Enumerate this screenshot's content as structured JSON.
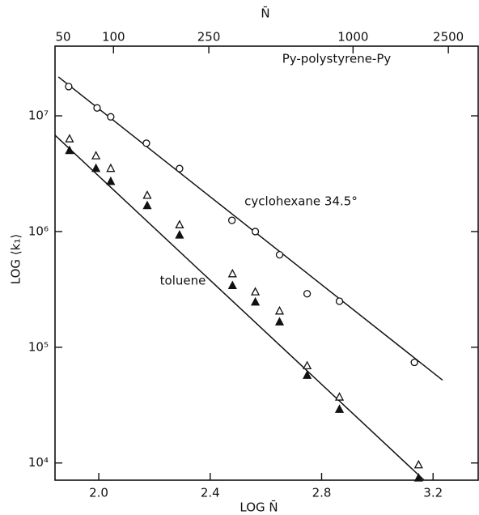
{
  "chart_data": {
    "type": "scatter",
    "x_label": "LOG N̄",
    "x2_label": "N̄",
    "y_label": "LOG ⟨k₁⟩",
    "annotations": [
      "Py-polystyrene-Py",
      "cyclohexane 34.5°",
      "toluene"
    ],
    "xlim": [
      1.843,
      3.362
    ],
    "xticks": [
      {
        "value": 2,
        "label": "2.0"
      },
      2.4,
      2.8,
      3.2
    ],
    "x2lim": [
      57,
      3330
    ],
    "x2_log_scale": true,
    "x2ticks": [
      50,
      100,
      250,
      1000,
      2500
    ],
    "ylim": [
      7100,
      40000000
    ],
    "y_log_scale": true,
    "yticks": [
      {
        "value": 10000,
        "label": "10⁴"
      },
      {
        "value": 100000,
        "label": "10⁵"
      },
      {
        "value": 1000000,
        "label": "10⁶"
      },
      {
        "value": 10000000,
        "label": "10⁷"
      }
    ],
    "color": "#111111",
    "series": [
      {
        "marker": "open-circle",
        "x": [
          1.892,
          1.994,
          2.043,
          2.171,
          2.29,
          2.478,
          2.562,
          2.649,
          2.748,
          2.864,
          3.133
        ],
        "values": [
          17900000,
          11700000,
          9800000,
          5800000,
          3500000,
          1250000,
          1000000,
          630000,
          290000,
          250000,
          74000
        ]
      },
      {
        "marker": "open-triangle",
        "x": [
          1.895,
          1.99,
          2.043,
          2.174,
          2.29,
          2.48,
          2.562,
          2.649,
          2.748,
          2.864,
          3.148
        ],
        "values": [
          6300000,
          4500000,
          3500000,
          2050000,
          1140000,
          430000,
          300000,
          205000,
          69000,
          37000,
          9600
        ]
      },
      {
        "marker": "filled-triangle",
        "x": [
          1.895,
          1.99,
          2.043,
          2.174,
          2.29,
          2.48,
          2.562,
          2.649,
          2.748,
          2.864,
          3.148
        ],
        "values": [
          5000000,
          3500000,
          2700000,
          1670000,
          930000,
          340000,
          245000,
          165000,
          57000,
          29000,
          7400
        ]
      }
    ],
    "lines": [
      {
        "x": [
          1.855,
          3.234
        ],
        "values": [
          21700000,
          52000
        ]
      },
      {
        "x": [
          1.843,
          3.168
        ],
        "values": [
          6800000,
          7100
        ]
      }
    ]
  }
}
